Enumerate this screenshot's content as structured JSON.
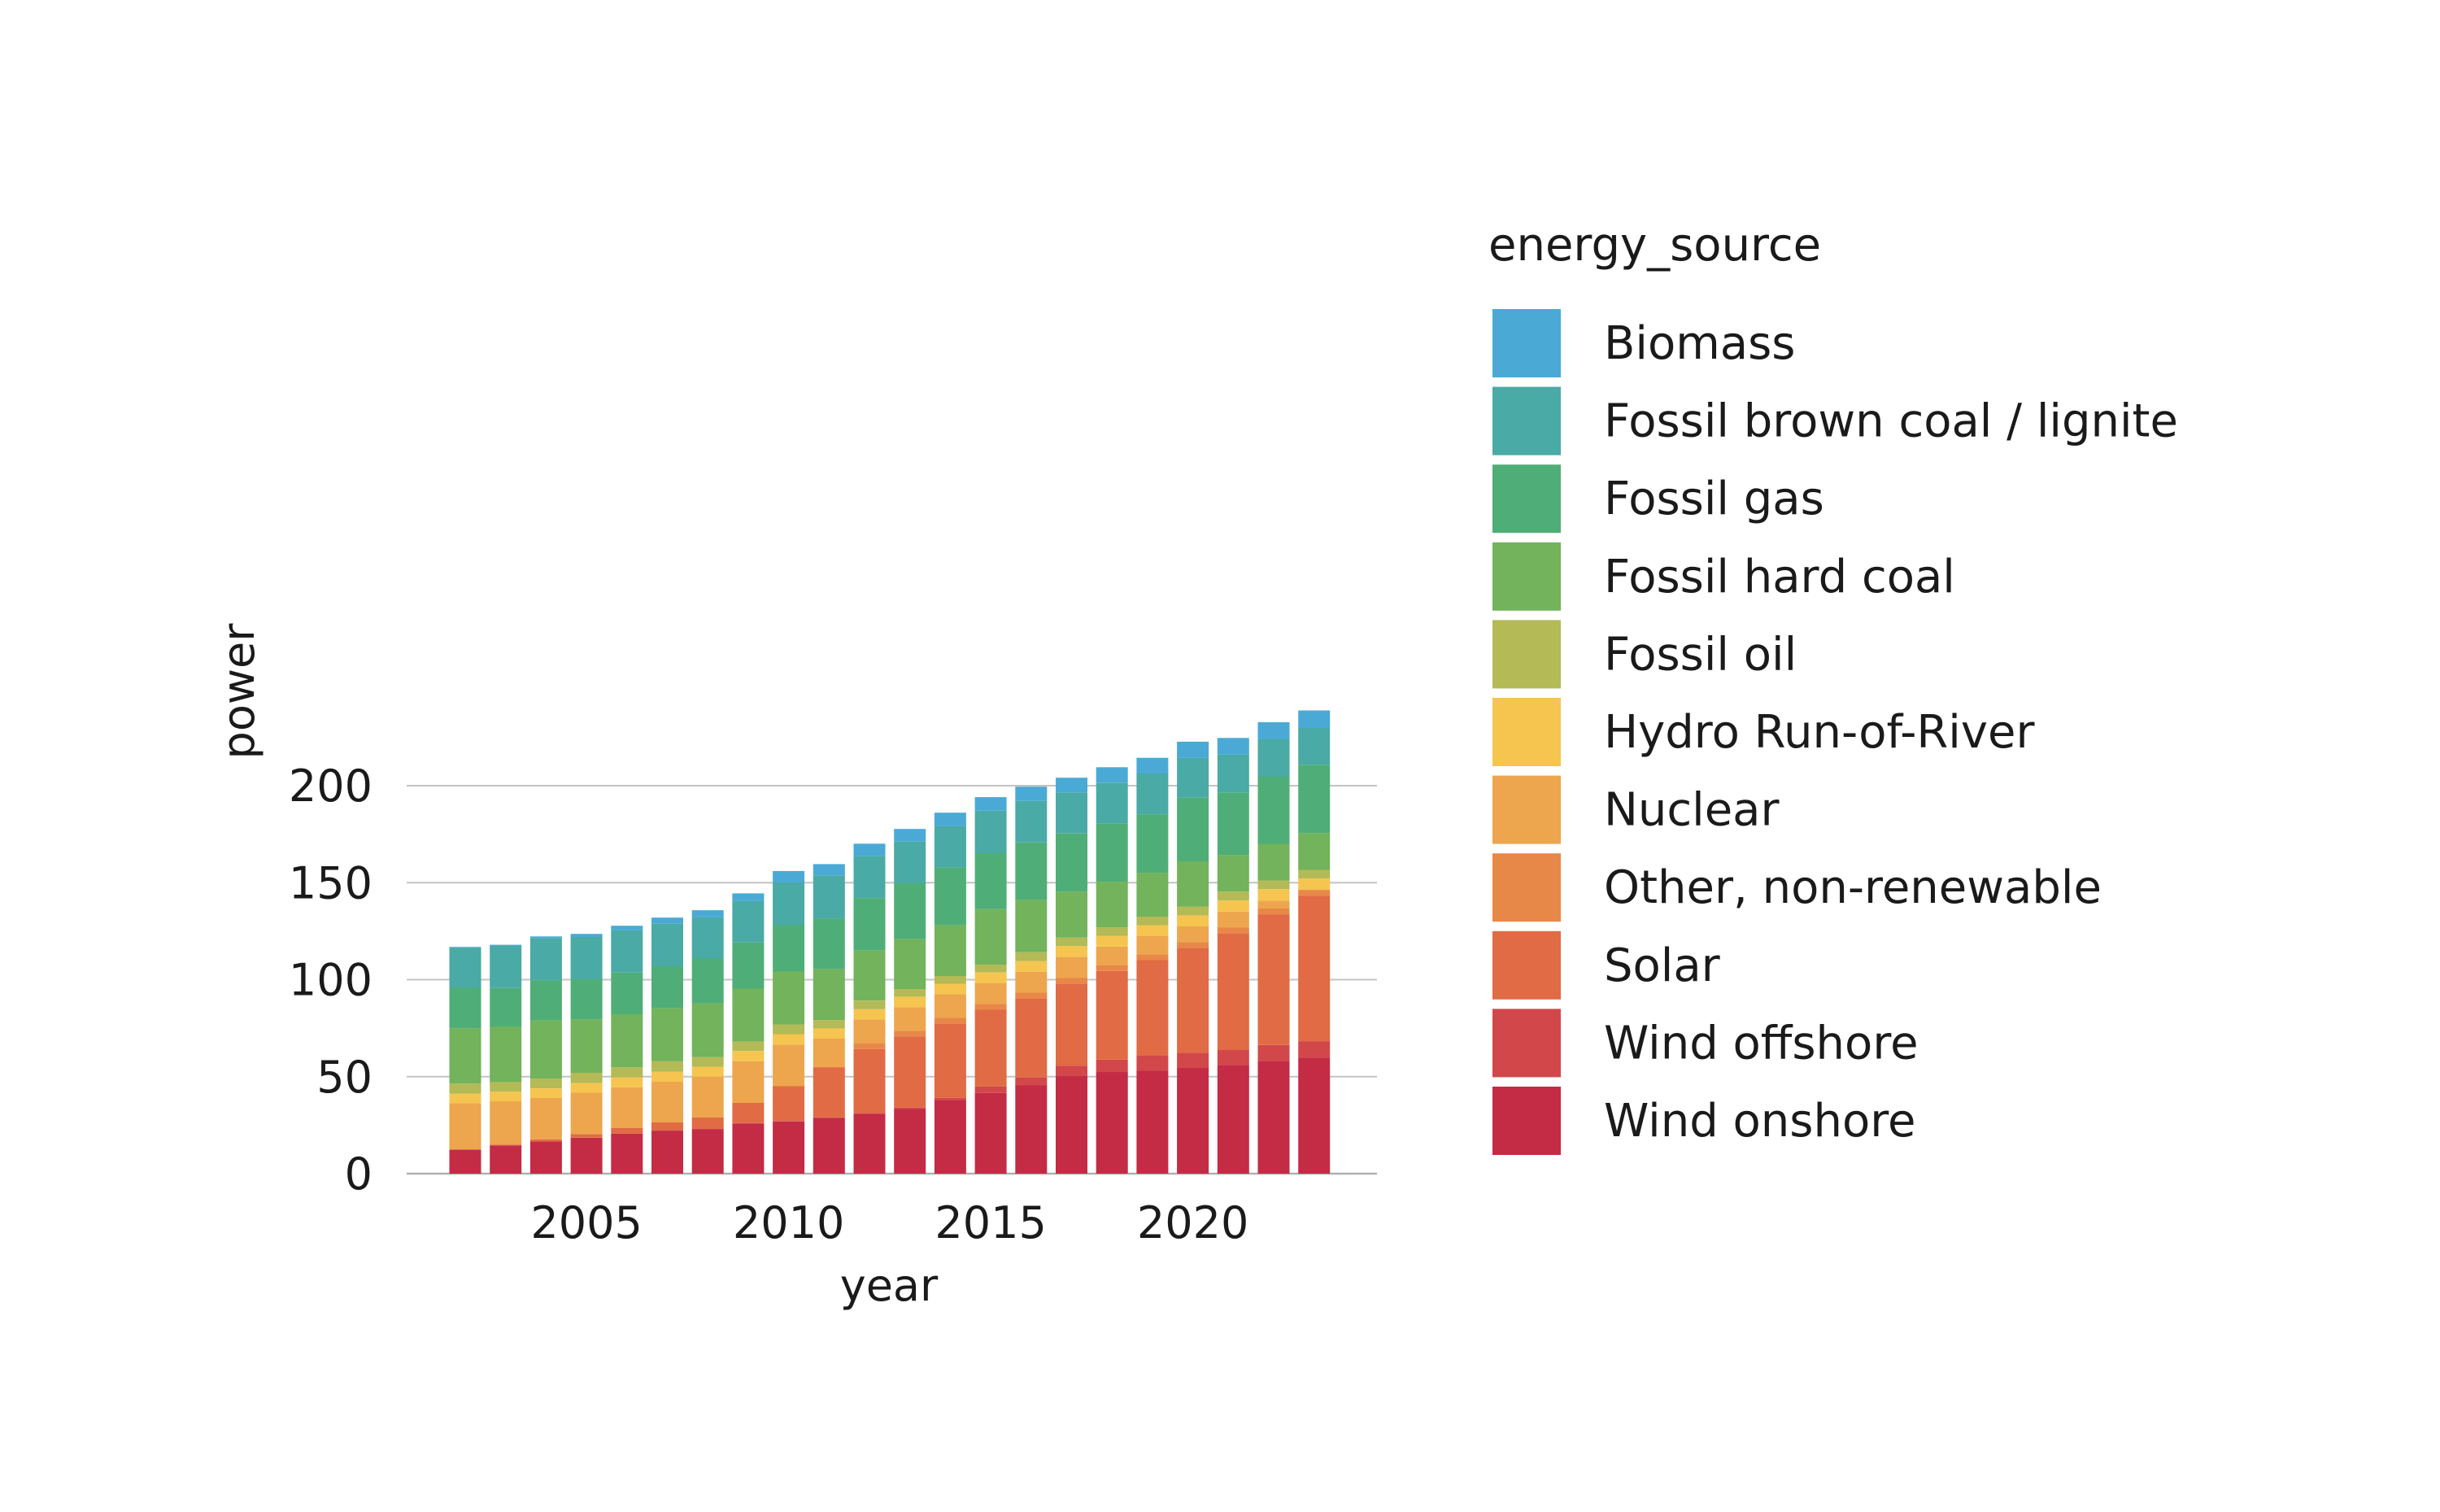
{
  "chart_data": {
    "type": "bar",
    "stacked": true,
    "xlabel": "year",
    "ylabel": "power",
    "ylim": [
      0,
      240
    ],
    "x_ticks": [
      2005,
      2010,
      2015,
      2020
    ],
    "y_ticks": [
      0,
      50,
      100,
      150,
      200
    ],
    "grid": "horizontal",
    "legend": {
      "title": "energy_source",
      "placement": "right"
    },
    "categories": [
      2002,
      2003,
      2004,
      2005,
      2006,
      2007,
      2008,
      2009,
      2010,
      2011,
      2012,
      2013,
      2014,
      2015,
      2016,
      2017,
      2018,
      2019,
      2020,
      2021,
      2022,
      2023
    ],
    "series": [
      {
        "name": "Wind onshore",
        "color": "#c42b45",
        "values": [
          12.3,
          14.6,
          16.6,
          18.5,
          20.6,
          22.2,
          23.0,
          25.9,
          27.0,
          28.8,
          30.9,
          33.5,
          38.0,
          41.6,
          45.5,
          50.3,
          52.4,
          53.2,
          54.5,
          56.1,
          58.2,
          59.8
        ]
      },
      {
        "name": "Wind offshore",
        "color": "#d2474a",
        "values": [
          0,
          0,
          0,
          0,
          0,
          0,
          0,
          0.1,
          0.1,
          0.2,
          0.3,
          0.5,
          1.0,
          3.3,
          4.1,
          5.4,
          6.4,
          7.6,
          7.8,
          7.8,
          8.1,
          8.5
        ]
      },
      {
        "name": "Solar",
        "color": "#e06b44",
        "values": [
          0.3,
          0.4,
          1.1,
          1.9,
          2.9,
          4.2,
          6.0,
          10.5,
          18.0,
          25.9,
          33.0,
          36.7,
          38.3,
          39.6,
          40.7,
          42.3,
          45.7,
          49.3,
          54.1,
          60.1,
          67.4,
          75.0
        ]
      },
      {
        "name": "Other, non-renewable",
        "color": "#e88848",
        "values": [
          0,
          0,
          0,
          0,
          0,
          0,
          0,
          0,
          0,
          0,
          3.2,
          3.0,
          3.1,
          3.0,
          3.0,
          3.0,
          3.0,
          3.0,
          3.0,
          3.0,
          3.0,
          3.0
        ]
      },
      {
        "name": "Nuclear",
        "color": "#eda64d",
        "values": [
          23.8,
          22.3,
          21.3,
          21.3,
          21.0,
          21.0,
          21.0,
          21.5,
          21.5,
          14.7,
          12.1,
          12.1,
          12.1,
          10.8,
          10.8,
          10.8,
          9.5,
          9.5,
          8.1,
          8.1,
          4.1,
          0
        ]
      },
      {
        "name": "Hydro Run-of-River",
        "color": "#f5c54f",
        "values": [
          4.8,
          4.9,
          5.0,
          5.0,
          5.1,
          5.1,
          5.1,
          5.2,
          5.3,
          5.3,
          5.3,
          5.4,
          5.4,
          5.4,
          5.5,
          5.5,
          5.5,
          5.5,
          5.6,
          5.7,
          5.8,
          5.8
        ]
      },
      {
        "name": "Fossil oil",
        "color": "#b3ba56",
        "values": [
          5.2,
          5.0,
          5.0,
          5.3,
          5.2,
          5.4,
          5.0,
          5.0,
          5.0,
          4.3,
          4.4,
          4.0,
          4.0,
          4.0,
          4.5,
          4.4,
          4.5,
          4.4,
          4.5,
          4.6,
          4.5,
          4.5
        ]
      },
      {
        "name": "Fossil hard coal",
        "color": "#72b35c",
        "values": [
          28.6,
          28.7,
          30.0,
          27.5,
          27.4,
          27.4,
          27.7,
          27.2,
          27.3,
          26.3,
          25.8,
          25.7,
          26.2,
          28.7,
          27.1,
          23.7,
          23.5,
          22.6,
          23.4,
          18.9,
          18.9,
          19.0
        ]
      },
      {
        "name": "Fossil gas",
        "color": "#4fae77",
        "values": [
          20.8,
          19.8,
          20.7,
          20.7,
          21.5,
          21.6,
          23.1,
          23.8,
          23.9,
          26.0,
          27.1,
          28.8,
          29.7,
          28.8,
          29.5,
          30.0,
          30.1,
          30.2,
          32.8,
          32.2,
          34.6,
          35.2
        ]
      },
      {
        "name": "Fossil brown coal / lignite",
        "color": "#4aaaa5",
        "values": [
          20.6,
          21.7,
          21.6,
          21.8,
          21.7,
          21.9,
          21.2,
          21.3,
          22.0,
          22.3,
          21.7,
          21.5,
          21.4,
          21.9,
          21.4,
          21.1,
          21.0,
          21.0,
          20.5,
          19.5,
          19.3,
          19.0
        ]
      },
      {
        "name": "Biomass",
        "color": "#4aaad5",
        "values": [
          0.5,
          0.6,
          1.0,
          1.6,
          2.4,
          3.2,
          3.7,
          4.0,
          5.9,
          5.8,
          6.3,
          6.5,
          6.9,
          7.0,
          7.4,
          7.6,
          7.9,
          8.1,
          8.4,
          8.6,
          8.8,
          9.0
        ]
      }
    ]
  }
}
